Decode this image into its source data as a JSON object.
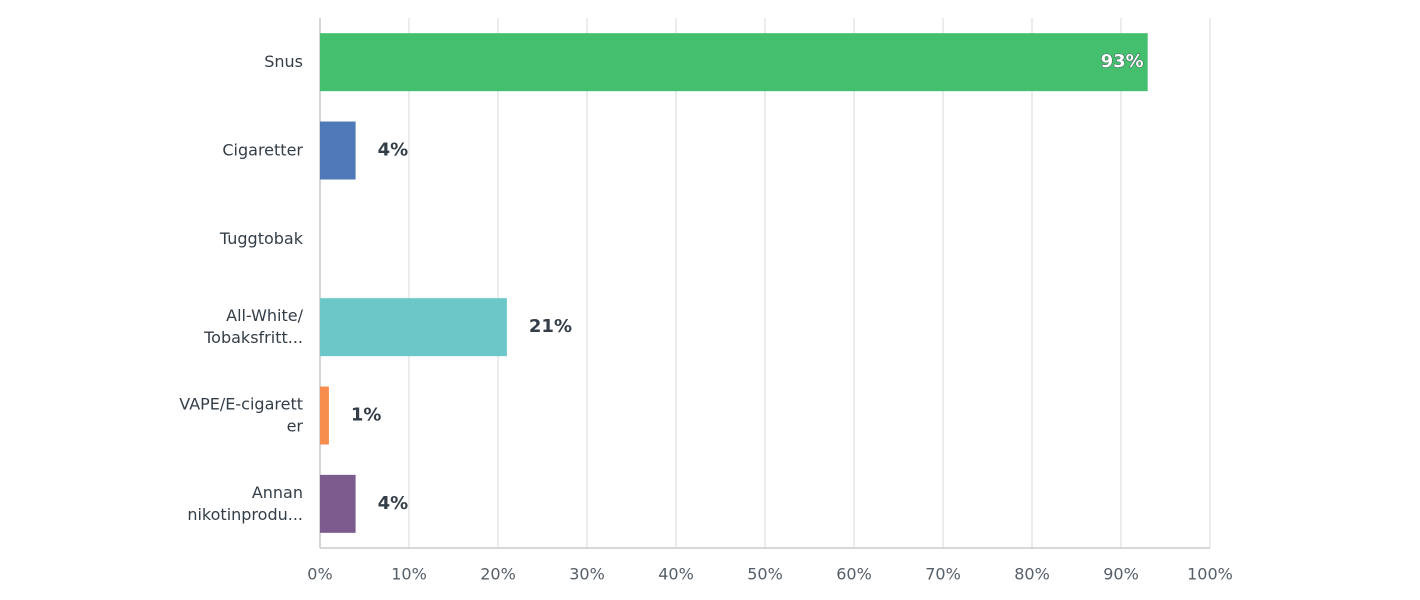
{
  "chart_data": {
    "type": "bar",
    "orientation": "horizontal",
    "categories": [
      "Snus",
      "Cigaretter",
      "Tuggtobak",
      "All-White/\nTobaksfritt...",
      "VAPE/E-cigarett\ner",
      "Annan\nnikotinprodu..."
    ],
    "values": [
      93,
      4,
      0,
      21,
      1,
      4
    ],
    "value_labels": [
      "93%",
      "4%",
      null,
      "21%",
      "1%",
      "4%"
    ],
    "colors": [
      "#44bf6d",
      "#4f78b8",
      null,
      "#6cc7c9",
      "#f68d4c",
      "#7c5b8e"
    ],
    "xlim": [
      0,
      100
    ],
    "xticks": [
      {
        "value": 0,
        "label": "0%"
      },
      {
        "value": 10,
        "label": "10%"
      },
      {
        "value": 20,
        "label": "20%"
      },
      {
        "value": 30,
        "label": "30%"
      },
      {
        "value": 40,
        "label": "40%"
      },
      {
        "value": 50,
        "label": "50%"
      },
      {
        "value": 60,
        "label": "60%"
      },
      {
        "value": 70,
        "label": "70%"
      },
      {
        "value": 80,
        "label": "80%"
      },
      {
        "value": 90,
        "label": "90%"
      },
      {
        "value": 100,
        "label": "100%"
      }
    ],
    "grid": true
  }
}
